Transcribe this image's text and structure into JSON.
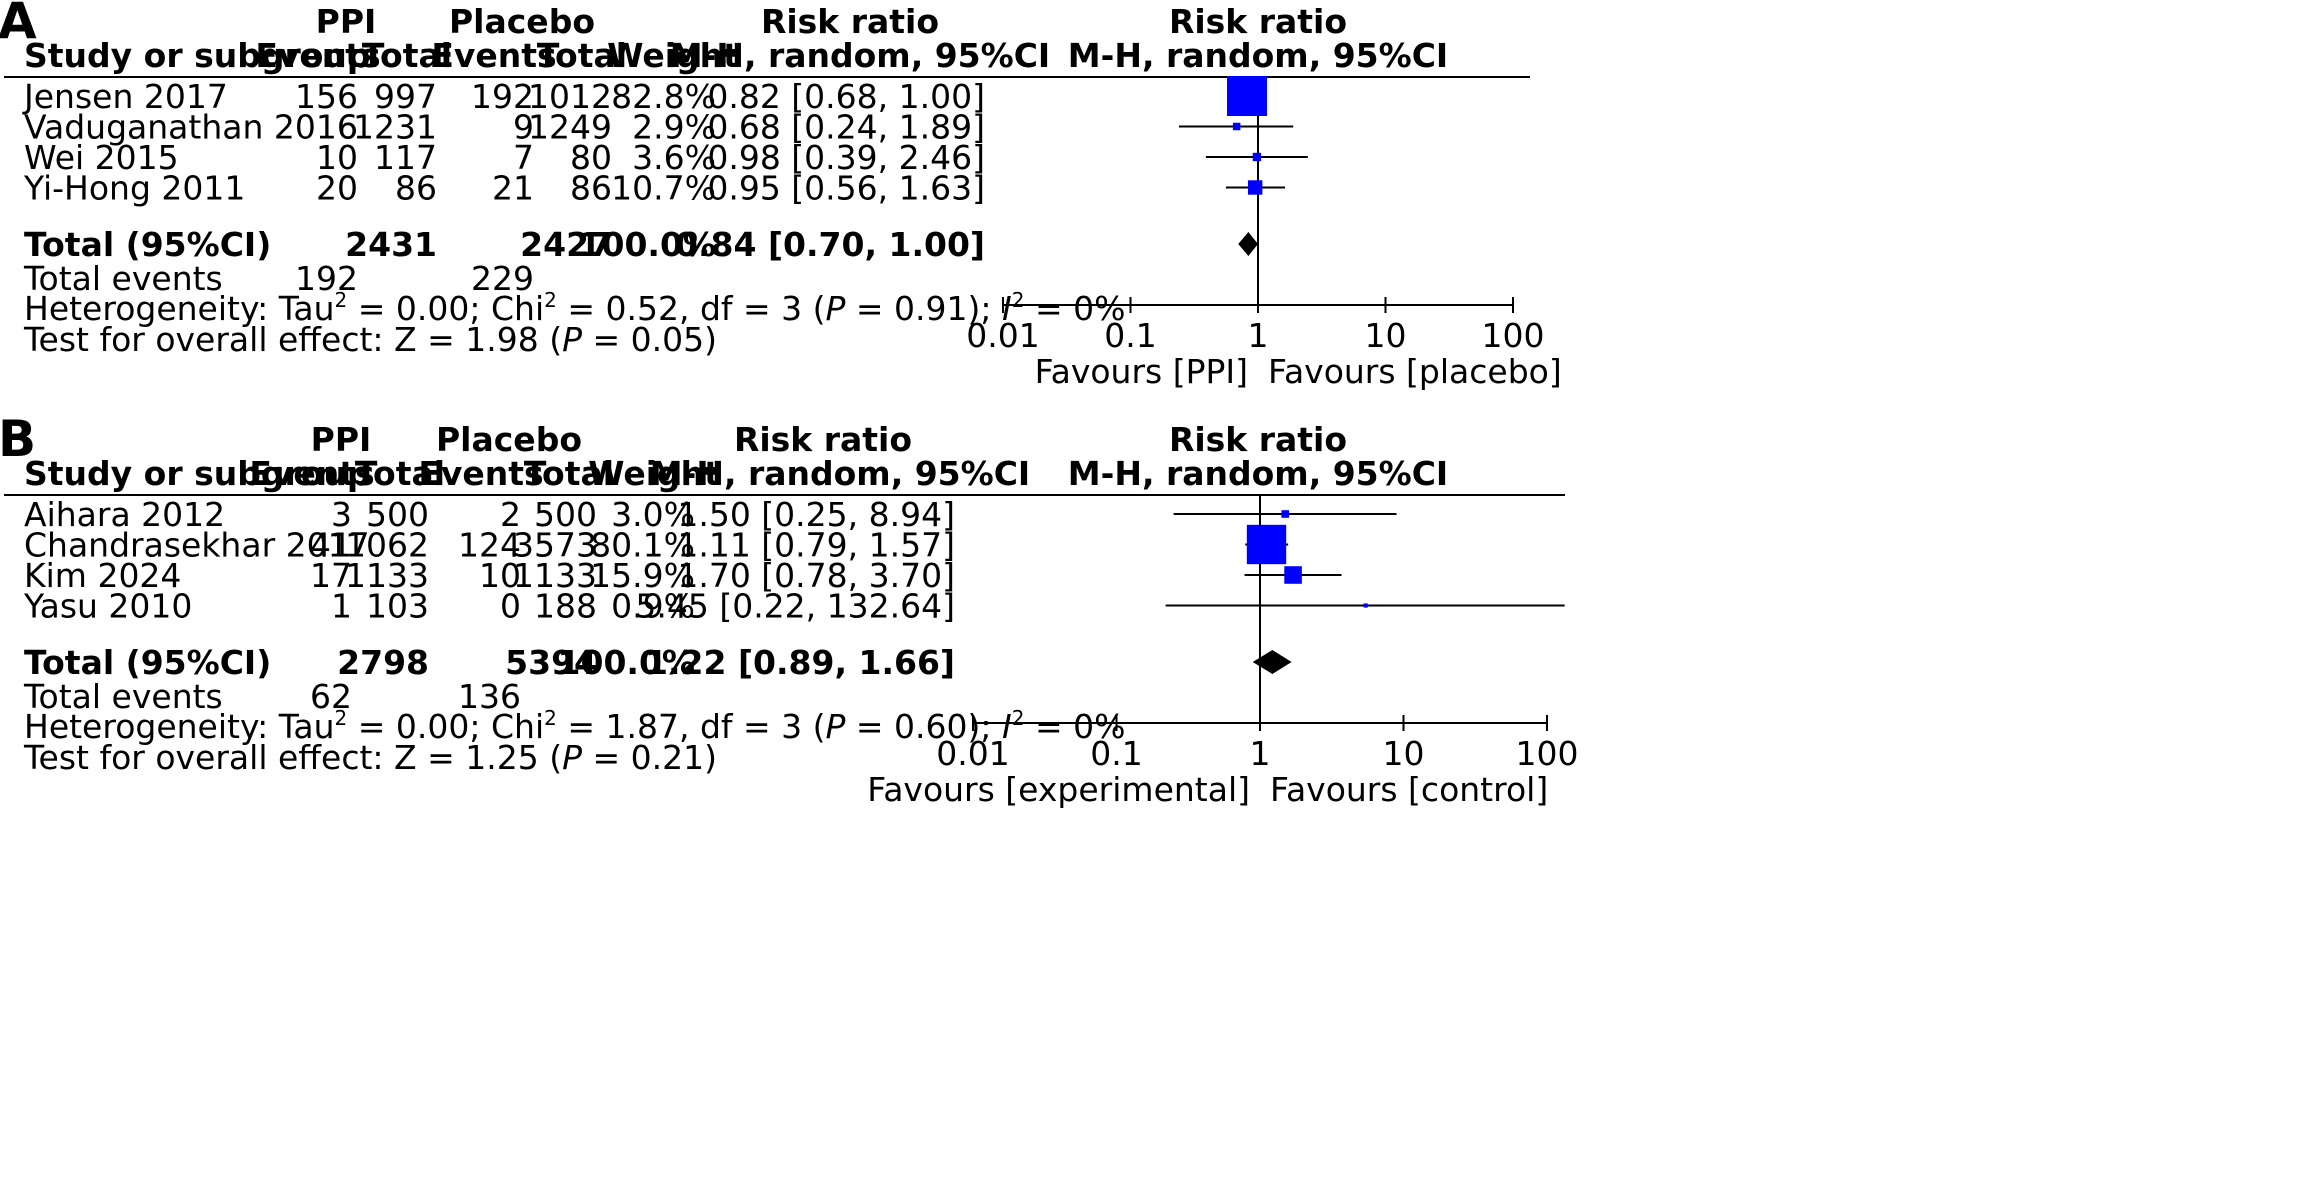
{
  "chart_data": [
    {
      "type": "forest",
      "panel_label": "A",
      "columns": {
        "group1": "PPI",
        "group2": "Placebo",
        "study": "Study or subgroup",
        "events": "Events",
        "total": "Total",
        "weight": "Weight",
        "rr_header": "Risk ratio",
        "rr_method": "M-H, random, 95%CI",
        "plot_header": "Risk ratio",
        "plot_method": "M-H, random, 95%CI"
      },
      "studies": [
        {
          "name": "Jensen 2017",
          "e1": "156",
          "n1": "997",
          "e2": "192",
          "n2": "1012",
          "weight": "82.8%",
          "ci_text": "0.82 [0.68, 1.00]",
          "rr": 0.82,
          "lo": 0.68,
          "hi": 1.0,
          "w": 82.8
        },
        {
          "name": "Vaduganathan 2016",
          "e1": "6",
          "n1": "1231",
          "e2": "9",
          "n2": "1249",
          "weight": "2.9%",
          "ci_text": "0.68 [0.24, 1.89]",
          "rr": 0.68,
          "lo": 0.24,
          "hi": 1.89,
          "w": 2.9
        },
        {
          "name": "Wei 2015",
          "e1": "10",
          "n1": "117",
          "e2": "7",
          "n2": "80",
          "weight": "3.6%",
          "ci_text": "0.98 [0.39, 2.46]",
          "rr": 0.98,
          "lo": 0.39,
          "hi": 2.46,
          "w": 3.6
        },
        {
          "name": "Yi-Hong 2011",
          "e1": "20",
          "n1": "86",
          "e2": "21",
          "n2": "86",
          "weight": "10.7%",
          "ci_text": "0.95 [0.56, 1.63]",
          "rr": 0.95,
          "lo": 0.56,
          "hi": 1.63,
          "w": 10.7
        }
      ],
      "total": {
        "label": "Total (95%CI)",
        "n1": "2431",
        "n2": "2427",
        "weight": "100.0%",
        "ci_text": "0.84 [0.70, 1.00]",
        "rr": 0.84,
        "lo": 0.7,
        "hi": 1.0
      },
      "total_events": {
        "label": "Total events",
        "e1": "192",
        "e2": "229"
      },
      "heterogeneity": {
        "prefix": "Heterogeneity: Tau",
        "a": " = 0.00; Chi",
        "b": " = 0.52, df = 3 (",
        "p": "P",
        "c": " = 0.91); ",
        "i": "I",
        "d": " = 0%",
        "sup": "2"
      },
      "overall": {
        "prefix": "Test for overall effect: Z = 1.98 (",
        "p": "P",
        "suffix": " = 0.05)"
      },
      "axis": {
        "scale": "log",
        "ticks": [
          0.01,
          0.1,
          1,
          10,
          100
        ],
        "tick_labels": [
          "0.01",
          "0.1",
          "1",
          "10",
          "100"
        ]
      },
      "favours_left": "Favours [PPI]",
      "favours_right": "Favours [placebo]"
    },
    {
      "type": "forest",
      "panel_label": "B",
      "columns": {
        "group1": "PPI",
        "group2": "Placebo",
        "study": "Study or subgroup",
        "events": "Events",
        "total": "Total",
        "weight": "Weight",
        "rr_header": "Risk ratio",
        "rr_method": "M-H, random, 95%CI",
        "plot_header": "Risk ratio",
        "plot_method": "M-H, random, 95%CI"
      },
      "studies": [
        {
          "name": "Aihara 2012",
          "e1": "3",
          "n1": "500",
          "e2": "2",
          "n2": "500",
          "weight": "3.0%",
          "ci_text": "1.50 [0.25, 8.94]",
          "rr": 1.5,
          "lo": 0.25,
          "hi": 8.94,
          "w": 3.0
        },
        {
          "name": "Chandrasekhar 2017",
          "e1": "41",
          "n1": "1062",
          "e2": "124",
          "n2": "3573",
          "weight": "80.1%",
          "ci_text": "1.11 [0.79, 1.57]",
          "rr": 1.11,
          "lo": 0.79,
          "hi": 1.57,
          "w": 80.1
        },
        {
          "name": "Kim 2024",
          "e1": "17",
          "n1": "1133",
          "e2": "10",
          "n2": "1133",
          "weight": "15.9%",
          "ci_text": "1.70 [0.78, 3.70]",
          "rr": 1.7,
          "lo": 0.78,
          "hi": 3.7,
          "w": 15.9
        },
        {
          "name": "Yasu 2010",
          "e1": "1",
          "n1": "103",
          "e2": "0",
          "n2": "188",
          "weight": "0.9%",
          "ci_text": "5.45 [0.22, 132.64]",
          "rr": 5.45,
          "lo": 0.22,
          "hi": 132.64,
          "w": 0.9
        }
      ],
      "total": {
        "label": "Total (95%CI)",
        "n1": "2798",
        "n2": "5394",
        "weight": "100.0%",
        "ci_text": "1.22 [0.89, 1.66]",
        "rr": 1.22,
        "lo": 0.89,
        "hi": 1.66
      },
      "total_events": {
        "label": "Total events",
        "e1": "62",
        "e2": "136"
      },
      "heterogeneity": {
        "prefix": "Heterogeneity: Tau",
        "a": " = 0.00; Chi",
        "b": " = 1.87, df = 3 (",
        "p": "P",
        "c": " = 0.60); ",
        "i": "I",
        "d": " = 0%",
        "sup": "2"
      },
      "overall": {
        "prefix": "Test for overall effect: Z = 1.25 (",
        "p": "P",
        "suffix": " = 0.21)"
      },
      "axis": {
        "scale": "log",
        "ticks": [
          0.01,
          0.1,
          1,
          10,
          100
        ],
        "tick_labels": [
          "0.01",
          "0.1",
          "1",
          "10",
          "100"
        ]
      },
      "favours_left": "Favours [experimental]",
      "favours_right": "Favours [control]"
    }
  ],
  "colors": {
    "marker": "#0000ff",
    "ink": "#000000"
  }
}
